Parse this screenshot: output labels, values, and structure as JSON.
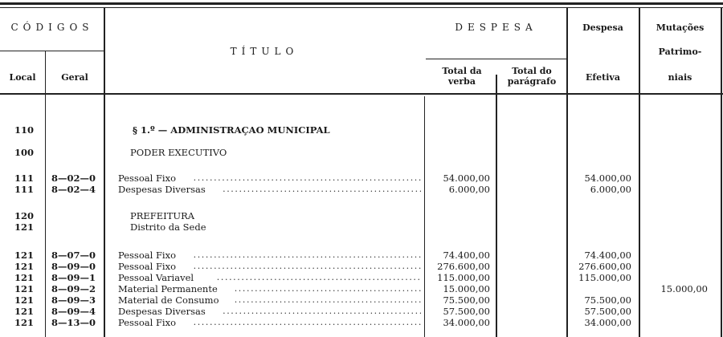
{
  "header": {
    "codigos": "CÓDIGOS",
    "local": "Local",
    "geral": "Geral",
    "titulo": "TÍTULO",
    "despesa": "DESPESA",
    "total_verba": "Total da verba",
    "total_paragrafo": "Total do parágrafo",
    "despesa_efetiva_top": "Despesa",
    "despesa_efetiva_bottom": "Efetiva",
    "mutacoes_1": "Mutações",
    "mutacoes_2": "Patrimo-",
    "mutacoes_3": "niais"
  },
  "rows": [
    {
      "local": "110",
      "geral": "",
      "titulo": "§ 1.º — ADMINISTRAÇAO MUNICIPAL",
      "style": "section",
      "verba": "",
      "paragrafo": "",
      "efetiva": "",
      "mutacoes": ""
    },
    {
      "local": "100",
      "geral": "",
      "titulo": "PODER EXECUTIVO",
      "style": "heading",
      "verba": "",
      "paragrafo": "",
      "efetiva": "",
      "mutacoes": ""
    },
    {
      "local": "111",
      "geral": "8—02—0",
      "titulo": "Pessoal Fixo",
      "style": "item",
      "verba": "54.000,00",
      "paragrafo": "",
      "efetiva": "54.000,00",
      "mutacoes": ""
    },
    {
      "local": "111",
      "geral": "8—02—4",
      "titulo": "Despesas Diversas",
      "style": "item",
      "verba": "6.000,00",
      "paragrafo": "",
      "efetiva": "6.000,00",
      "mutacoes": ""
    },
    {
      "local": "120",
      "geral": "",
      "titulo": "PREFEITURA",
      "style": "heading",
      "verba": "",
      "paragrafo": "",
      "efetiva": "",
      "mutacoes": ""
    },
    {
      "local": "121",
      "geral": "",
      "titulo": "Distrito da Sede",
      "style": "heading",
      "verba": "",
      "paragrafo": "",
      "efetiva": "",
      "mutacoes": ""
    },
    {
      "local": "121",
      "geral": "8—07—0",
      "titulo": "Pessoal Fixo",
      "style": "item",
      "verba": "74.400,00",
      "paragrafo": "",
      "efetiva": "74.400,00",
      "mutacoes": ""
    },
    {
      "local": "121",
      "geral": "8—09—0",
      "titulo": "Pessoal Fixo",
      "style": "item",
      "verba": "276.600,00",
      "paragrafo": "",
      "efetiva": "276.600,00",
      "mutacoes": ""
    },
    {
      "local": "121",
      "geral": "8—09—1",
      "titulo": "Pessoal Variavel",
      "style": "item",
      "verba": "115.000,00",
      "paragrafo": "",
      "efetiva": "115.000,00",
      "mutacoes": ""
    },
    {
      "local": "121",
      "geral": "8—09—2",
      "titulo": "Material Permanente",
      "style": "item",
      "verba": "15.000,00",
      "paragrafo": "",
      "efetiva": "",
      "mutacoes": "15.000,00"
    },
    {
      "local": "121",
      "geral": "8—09—3",
      "titulo": "Material de Consumo",
      "style": "item",
      "verba": "75.500,00",
      "paragrafo": "",
      "efetiva": "75.500,00",
      "mutacoes": ""
    },
    {
      "local": "121",
      "geral": "8—09—4",
      "titulo": "Despesas Diversas",
      "style": "item",
      "verba": "57.500,00",
      "paragrafo": "",
      "efetiva": "57.500,00",
      "mutacoes": ""
    },
    {
      "local": "121",
      "geral": "8—13—0",
      "titulo": "Pessoal Fixo",
      "style": "item",
      "verba": "34.000,00",
      "paragrafo": "",
      "efetiva": "34.000,00",
      "mutacoes": ""
    }
  ]
}
